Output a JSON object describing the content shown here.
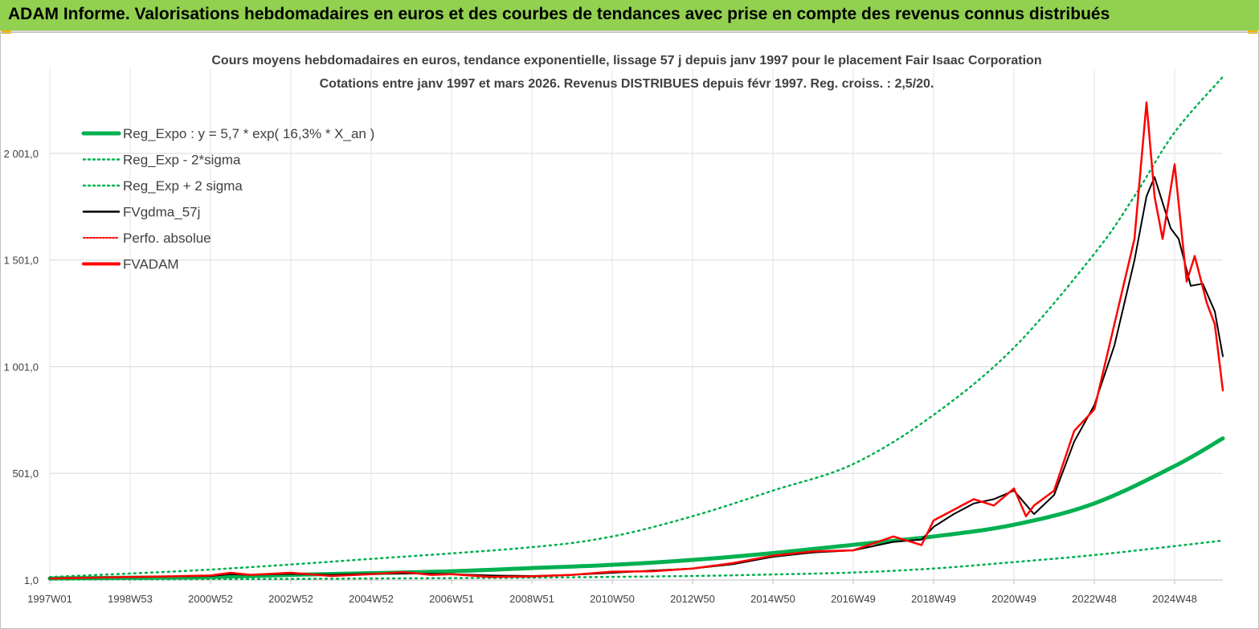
{
  "banner": {
    "title": "ADAM Informe. Valorisations hebdomadaires en euros et des courbes de tendances avec prise en compte des revenus connus distribués"
  },
  "colors": {
    "banner_bg": "#92d050",
    "trend": "#00b050",
    "smooth": "#000000",
    "price": "#ff0000",
    "perf": "#ff0000"
  },
  "chart_data": {
    "type": "line",
    "title": "Cours moyens hebdomadaires en euros, tendance exponentielle, lissage 57 j depuis janv 1997 pour le placement Fair Isaac Corporation",
    "subtitle": "Cotations entre janv 1997 et mars 2026. Revenus DISTRIBUES depuis févr 1997. Reg. croiss. : 2,5/20.",
    "xlabel": "",
    "ylabel": "",
    "x_range_years": [
      1997.0,
      2026.2
    ],
    "ylim": [
      1,
      2400
    ],
    "y_ticks": [
      {
        "value": 1,
        "label": "1,0"
      },
      {
        "value": 501,
        "label": "501,0"
      },
      {
        "value": 1001,
        "label": "1 001,0"
      },
      {
        "value": 1501,
        "label": "1 501,0"
      },
      {
        "value": 2001,
        "label": "2 001,0"
      }
    ],
    "x_ticks": [
      {
        "year": 1997.0,
        "label": "1997W01"
      },
      {
        "year": 1999.0,
        "label": "1998W53"
      },
      {
        "year": 2001.0,
        "label": "2000W52"
      },
      {
        "year": 2003.0,
        "label": "2002W52"
      },
      {
        "year": 2005.0,
        "label": "2004W52"
      },
      {
        "year": 2007.0,
        "label": "2006W51"
      },
      {
        "year": 2009.0,
        "label": "2008W51"
      },
      {
        "year": 2011.0,
        "label": "2010W50"
      },
      {
        "year": 2013.0,
        "label": "2012W50"
      },
      {
        "year": 2015.0,
        "label": "2014W50"
      },
      {
        "year": 2017.0,
        "label": "2016W49"
      },
      {
        "year": 2019.0,
        "label": "2018W49"
      },
      {
        "year": 2021.0,
        "label": "2020W49"
      },
      {
        "year": 2023.0,
        "label": "2022W48"
      },
      {
        "year": 2025.0,
        "label": "2024W48"
      }
    ],
    "legend": [
      {
        "key": "trend",
        "label": "Reg_Expo : y = 5,7 * exp( 16,3% *  X_an )",
        "style": "thick"
      },
      {
        "key": "lower",
        "label": "Reg_Exp - 2*sigma",
        "style": "dotted-green"
      },
      {
        "key": "upper",
        "label": "Reg_Exp + 2 sigma",
        "style": "dotted-green"
      },
      {
        "key": "smooth",
        "label": "FVgdma_57j",
        "style": "black"
      },
      {
        "key": "perf",
        "label": "Perfo. absolue",
        "style": "dotted-red"
      },
      {
        "key": "price",
        "label": "FVADAM",
        "style": "red-thick"
      }
    ],
    "legend_position": "top-left",
    "series": [
      {
        "name": "Reg_Expo",
        "x": [
          1997,
          1999,
          2001,
          2003,
          2005,
          2007,
          2009,
          2011,
          2013,
          2015,
          2017,
          2019,
          2021,
          2023,
          2025,
          2026.2
        ],
        "y": [
          8,
          12,
          15,
          25,
          33,
          42,
          57,
          72,
          95,
          127,
          166,
          205,
          260,
          360,
          535,
          665
        ]
      },
      {
        "name": "Reg_Exp - 2*sigma",
        "x": [
          1997,
          2001,
          2005,
          2009,
          2013,
          2015,
          2017,
          2019,
          2021,
          2023,
          2025,
          2026.2
        ],
        "y": [
          3,
          5,
          8,
          12,
          20,
          27,
          36,
          55,
          85,
          118,
          160,
          186
        ]
      },
      {
        "name": "Reg_Exp + 2 sigma",
        "x": [
          1997,
          2001,
          2005,
          2009,
          2011,
          2013,
          2015,
          2017,
          2019,
          2021,
          2023,
          2024,
          2025,
          2026.2
        ],
        "y": [
          15,
          50,
          100,
          155,
          205,
          300,
          420,
          545,
          775,
          1090,
          1530,
          1800,
          2100,
          2360
        ]
      },
      {
        "name": "FVgdma_57j",
        "x": [
          1997,
          1998,
          1999,
          2000,
          2001,
          2001.5,
          2002,
          2003,
          2004,
          2005,
          2005.8,
          2006.5,
          2007,
          2008,
          2009,
          2010,
          2011,
          2012,
          2013,
          2014,
          2015,
          2016,
          2017,
          2018,
          2018.7,
          2019,
          2019.5,
          2020,
          2020.5,
          2021,
          2021.5,
          2022,
          2022.5,
          2023,
          2023.5,
          2024,
          2024.3,
          2024.5,
          2024.9,
          2025.1,
          2025.4,
          2025.7,
          2026,
          2026.2
        ],
        "y": [
          8,
          12,
          15,
          18,
          20,
          28,
          25,
          30,
          25,
          30,
          32,
          30,
          28,
          22,
          20,
          25,
          35,
          45,
          55,
          75,
          110,
          130,
          140,
          180,
          190,
          250,
          310,
          360,
          380,
          420,
          310,
          400,
          650,
          820,
          1100,
          1500,
          1800,
          1890,
          1650,
          1600,
          1380,
          1390,
          1260,
          1050
        ]
      },
      {
        "name": "FVADAM",
        "x": [
          1997,
          1998,
          1999,
          2000,
          2001,
          2001.5,
          2002,
          2003,
          2004,
          2005,
          2005.8,
          2006.5,
          2007,
          2008,
          2009,
          2010,
          2011,
          2012,
          2013,
          2014,
          2015,
          2016,
          2017,
          2018,
          2018.7,
          2019,
          2019.5,
          2020,
          2020.5,
          2021,
          2021.3,
          2021.5,
          2022,
          2022.5,
          2023,
          2023.5,
          2024,
          2024.3,
          2024.5,
          2024.7,
          2025,
          2025.3,
          2025.5,
          2025.8,
          2026,
          2026.2
        ],
        "y": [
          8,
          12,
          15,
          18,
          22,
          35,
          25,
          35,
          20,
          28,
          38,
          25,
          28,
          15,
          18,
          25,
          40,
          42,
          55,
          80,
          115,
          135,
          140,
          205,
          165,
          280,
          330,
          380,
          350,
          430,
          300,
          350,
          420,
          700,
          800,
          1200,
          1600,
          2240,
          1800,
          1600,
          1950,
          1400,
          1520,
          1300,
          1200,
          890
        ]
      }
    ]
  }
}
